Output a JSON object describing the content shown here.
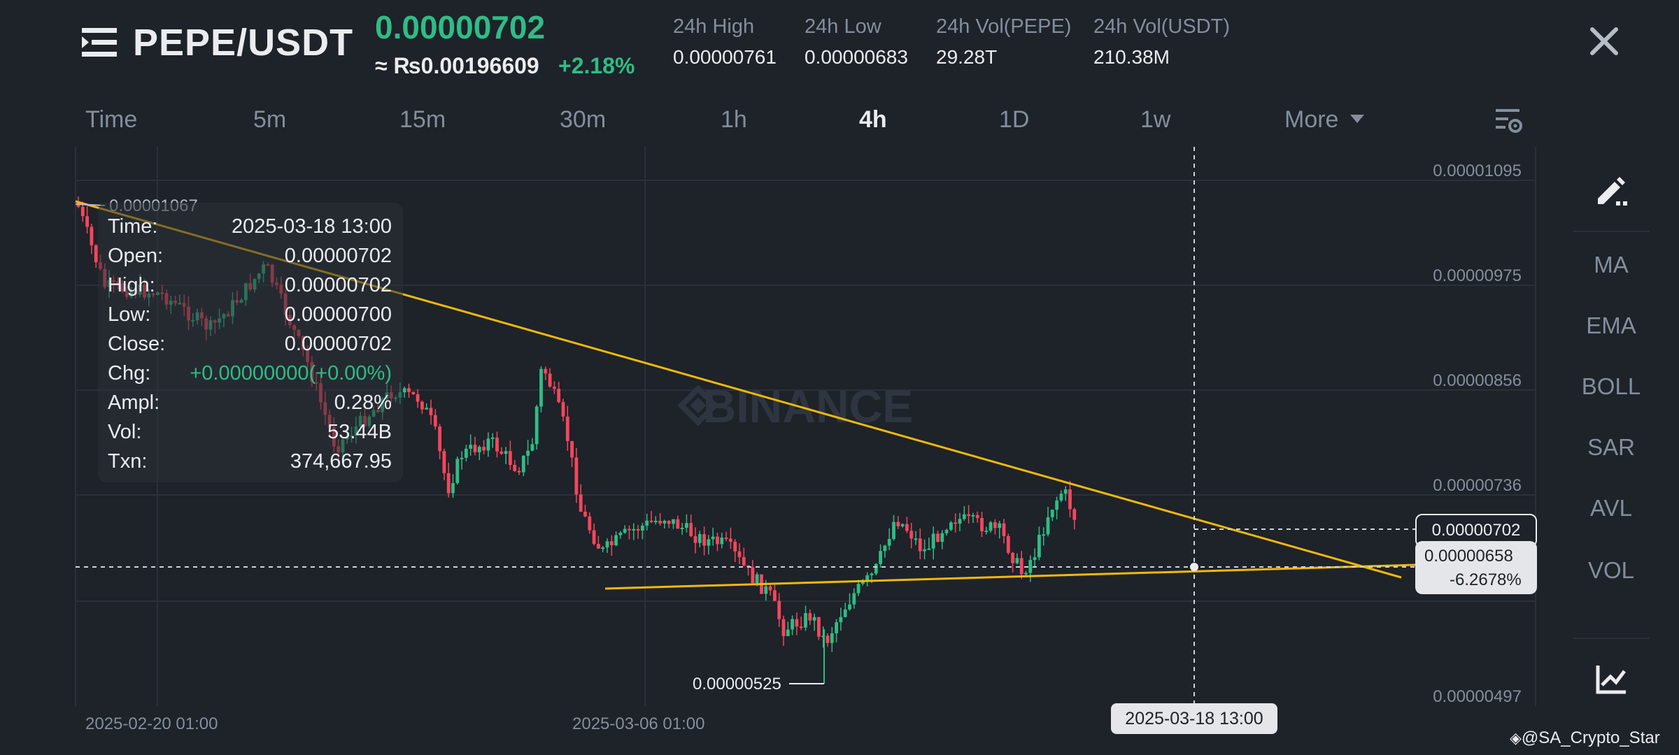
{
  "header": {
    "pair": "PEPE/USDT",
    "price": "0.00000702",
    "price_inr": "≈ ₨0.00196609",
    "change_pct": "+2.18%",
    "stats": [
      {
        "label": "24h High",
        "value": "0.00000761"
      },
      {
        "label": "24h Low",
        "value": "0.00000683"
      },
      {
        "label": "24h Vol(PEPE)",
        "value": "29.28T"
      },
      {
        "label": "24h Vol(USDT)",
        "value": "210.38M"
      }
    ],
    "icons": {
      "menu": "menu-icon",
      "close": "close-icon"
    }
  },
  "intervals": {
    "tabs": [
      "Time",
      "5m",
      "15m",
      "30m",
      "1h",
      "4h",
      "1D",
      "1w",
      "More"
    ],
    "active": "4h",
    "settings_icon": "chart-settings-icon"
  },
  "toolbar": {
    "draw_icon": "draw-icon",
    "items": [
      "MA",
      "EMA",
      "BOLL",
      "SAR",
      "AVL",
      "VOL"
    ],
    "bottom_icon": "trend-chart-icon"
  },
  "tooltip": {
    "rows": [
      {
        "label": "Time:",
        "value": "2025-03-18 13:00"
      },
      {
        "label": "Open:",
        "value": "0.00000702"
      },
      {
        "label": "High:",
        "value": "0.00000702"
      },
      {
        "label": "Low:",
        "value": "0.00000700"
      },
      {
        "label": "Close:",
        "value": "0.00000702"
      },
      {
        "label": "Chg:",
        "value": "+0.00000000(+0.00%)"
      },
      {
        "label": "Ampl:",
        "value": "0.28%"
      },
      {
        "label": "Vol:",
        "value": "53.44B"
      },
      {
        "label": "Txn:",
        "value": "374,667.95"
      }
    ]
  },
  "chart_data": {
    "type": "candlestick",
    "y_axis_labels": [
      "0.00001095",
      "0.00000975",
      "0.00000856",
      "0.00000736",
      "0.00000497"
    ],
    "x_axis_labels": [
      "2025-02-20 01:00",
      "2025-03-06 01:00"
    ],
    "high_label": "0.00001067",
    "low_label": "0.00000525",
    "last_price": "0.00000702",
    "crosshair_price": "0.00000658",
    "crosshair_pct": "-6.2678%",
    "crosshair_time": "2025-03-18 13:00",
    "watermark": "BINANCE",
    "colors": {
      "up": "#2ebd85",
      "down": "#f6465d",
      "trendline": "#f0b90b",
      "background": "#1e2229",
      "grid": "#2b3139"
    }
  },
  "credit": "@SA_Crypto_Star"
}
